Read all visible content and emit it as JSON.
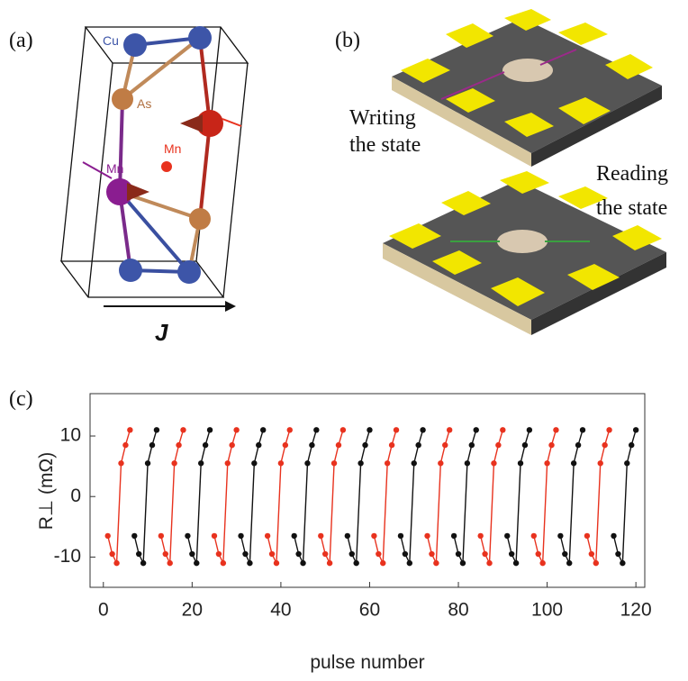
{
  "panel_labels": [
    "(a)",
    "(b)",
    "(c)"
  ],
  "crystal": {
    "labels": [
      "Cu",
      "As",
      "Mn",
      "Mn",
      "J"
    ]
  },
  "device": {
    "writing": [
      "Writing",
      "the state"
    ],
    "reading": [
      "Reading",
      "the state"
    ]
  },
  "chart_data": {
    "type": "line",
    "xlabel": "pulse number",
    "ylabel": "R⊥ (mΩ)",
    "x": [
      1,
      2,
      3,
      4,
      5,
      6,
      7,
      8,
      9,
      10,
      11,
      12,
      13,
      14,
      15,
      16,
      17,
      18,
      19,
      20,
      21,
      22,
      23,
      24,
      25,
      26,
      27,
      28,
      29,
      30,
      31,
      32,
      33,
      34,
      35,
      36,
      37,
      38,
      39,
      40,
      41,
      42,
      43,
      44,
      45,
      46,
      47,
      48,
      49,
      50,
      51,
      52,
      53,
      54,
      55,
      56,
      57,
      58,
      59,
      60,
      61,
      62,
      63,
      64,
      65,
      66,
      67,
      68,
      69,
      70,
      71,
      72,
      73,
      74,
      75,
      76,
      77,
      78,
      79,
      80,
      81,
      82,
      83,
      84,
      85,
      86,
      87,
      88,
      89,
      90,
      91,
      92,
      93,
      94,
      95,
      96,
      97,
      98,
      99,
      100,
      101,
      102,
      103,
      104,
      105,
      106,
      107,
      108,
      109,
      110,
      111,
      112,
      113,
      114,
      115,
      116,
      117,
      118,
      119,
      120
    ],
    "series": [
      {
        "color": "#e8321e",
        "values": [
          -6.5,
          -9.5,
          -11,
          5.5,
          8.5,
          11,
          null,
          null,
          null,
          null,
          null,
          null,
          -6.5,
          -9.5,
          -11,
          5.5,
          8.5,
          11,
          null,
          null,
          null,
          null,
          null,
          null,
          -6.5,
          -9.5,
          -11,
          5.5,
          8.5,
          11,
          null,
          null,
          null,
          null,
          null,
          null,
          -6.5,
          -9.5,
          -11,
          5.5,
          8.5,
          11,
          null,
          null,
          null,
          null,
          null,
          null,
          -6.5,
          -9.5,
          -11,
          5.5,
          8.5,
          11,
          null,
          null,
          null,
          null,
          null,
          null,
          -6.5,
          -9.5,
          -11,
          5.5,
          8.5,
          11,
          null,
          null,
          null,
          null,
          null,
          null,
          -6.5,
          -9.5,
          -11,
          5.5,
          8.5,
          11,
          null,
          null,
          null,
          null,
          null,
          null,
          -6.5,
          -9.5,
          -11,
          5.5,
          8.5,
          11,
          null,
          null,
          null,
          null,
          null,
          null,
          -6.5,
          -9.5,
          -11,
          5.5,
          8.5,
          11,
          null,
          null,
          null,
          null,
          null,
          null,
          -6.5,
          -9.5,
          -11,
          5.5,
          8.5,
          11,
          null,
          null,
          null,
          null,
          null,
          null
        ]
      },
      {
        "color": "#111111",
        "values": [
          null,
          null,
          null,
          null,
          null,
          null,
          -6.5,
          -9.5,
          -11,
          5.5,
          8.5,
          11,
          null,
          null,
          null,
          null,
          null,
          null,
          -6.5,
          -9.5,
          -11,
          5.5,
          8.5,
          11,
          null,
          null,
          null,
          null,
          null,
          null,
          -6.5,
          -9.5,
          -11,
          5.5,
          8.5,
          11,
          null,
          null,
          null,
          null,
          null,
          null,
          -6.5,
          -9.5,
          -11,
          5.5,
          8.5,
          11,
          null,
          null,
          null,
          null,
          null,
          null,
          -6.5,
          -9.5,
          -11,
          5.5,
          8.5,
          11,
          null,
          null,
          null,
          null,
          null,
          null,
          -6.5,
          -9.5,
          -11,
          5.5,
          8.5,
          11,
          null,
          null,
          null,
          null,
          null,
          null,
          -6.5,
          -9.5,
          -11,
          5.5,
          8.5,
          11,
          null,
          null,
          null,
          null,
          null,
          null,
          -6.5,
          -9.5,
          -11,
          5.5,
          8.5,
          11,
          null,
          null,
          null,
          null,
          null,
          null,
          -6.5,
          -9.5,
          -11,
          5.5,
          8.5,
          11,
          null,
          null,
          null,
          null,
          null,
          null,
          -6.5,
          -9.5,
          -11,
          5.5,
          8.5,
          11
        ]
      }
    ],
    "xlim": [
      -3,
      122
    ],
    "ylim": [
      -15,
      17
    ],
    "xticks": [
      0,
      20,
      40,
      60,
      80,
      100,
      120
    ],
    "yticks": [
      -10,
      0,
      10
    ]
  }
}
